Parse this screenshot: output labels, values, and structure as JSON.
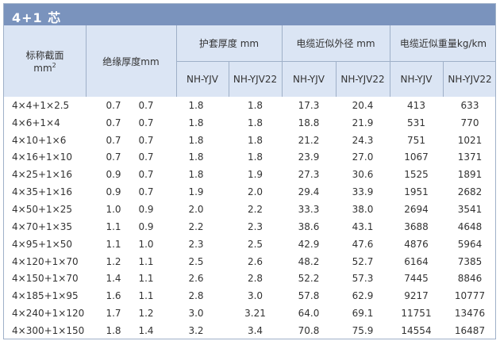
{
  "title": "4+1 芯",
  "header": {
    "col1": "标称截面",
    "col1_unit": "mm",
    "col1_unit_sup": "2",
    "col2": "绝缘厚度mm",
    "group1": "护套厚度 mm",
    "group2": "电缆近似外径 mm",
    "group3": "电缆近似重量kg/km",
    "sub": [
      "NH-YJV",
      "NH-YJV22",
      "NH-YJV",
      "NH-YJV22",
      "NH-YJV",
      "NH-YJV22"
    ]
  },
  "rows": [
    {
      "size": "4×4+1×2.5",
      "ins1": "0.7",
      "ins2": "0.7",
      "s1": "1.8",
      "s2": "1.8",
      "d1": "17.3",
      "d2": "20.4",
      "w1": "413",
      "w2": "633"
    },
    {
      "size": "4×6+1×4",
      "ins1": "0.7",
      "ins2": "0.7",
      "s1": "1.8",
      "s2": "1.8",
      "d1": "18.8",
      "d2": "21.9",
      "w1": "531",
      "w2": "770"
    },
    {
      "size": "4×10+1×6",
      "ins1": "0.7",
      "ins2": "0.7",
      "s1": "1.8",
      "s2": "1.8",
      "d1": "21.2",
      "d2": "24.3",
      "w1": "751",
      "w2": "1021"
    },
    {
      "size": "4×16+1×10",
      "ins1": "0.7",
      "ins2": "0.7",
      "s1": "1.8",
      "s2": "1.8",
      "d1": "23.9",
      "d2": "27.0",
      "w1": "1067",
      "w2": "1371"
    },
    {
      "size": "4×25+1×16",
      "ins1": "0.9",
      "ins2": "0.7",
      "s1": "1.8",
      "s2": "1.9",
      "d1": "27.3",
      "d2": "30.6",
      "w1": "1525",
      "w2": "1891"
    },
    {
      "size": "4×35+1×16",
      "ins1": "0.9",
      "ins2": "0.7",
      "s1": "1.9",
      "s2": "2.0",
      "d1": "29.4",
      "d2": "33.9",
      "w1": "1951",
      "w2": "2682"
    },
    {
      "size": "4×50+1×25",
      "ins1": "1.0",
      "ins2": "0.9",
      "s1": "2.0",
      "s2": "2.2",
      "d1": "33.3",
      "d2": "38.0",
      "w1": "2694",
      "w2": "3541"
    },
    {
      "size": "4×70+1×35",
      "ins1": "1.1",
      "ins2": "0.9",
      "s1": "2.2",
      "s2": "2.3",
      "d1": "38.6",
      "d2": "43.1",
      "w1": "3688",
      "w2": "4648"
    },
    {
      "size": "4×95+1×50",
      "ins1": "1.1",
      "ins2": "1.0",
      "s1": "2.3",
      "s2": "2.5",
      "d1": "42.9",
      "d2": "47.6",
      "w1": "4876",
      "w2": "5964"
    },
    {
      "size": "4×120+1×70",
      "ins1": "1.2",
      "ins2": "1.1",
      "s1": "2.5",
      "s2": "2.6",
      "d1": "48.2",
      "d2": "52.7",
      "w1": "6164",
      "w2": "7385"
    },
    {
      "size": "4×150+1×70",
      "ins1": "1.4",
      "ins2": "1.1",
      "s1": "2.6",
      "s2": "2.8",
      "d1": "52.2",
      "d2": "57.3",
      "w1": "7445",
      "w2": "8846"
    },
    {
      "size": "4×185+1×95",
      "ins1": "1.6",
      "ins2": "1.1",
      "s1": "2.8",
      "s2": "3.0",
      "d1": "57.8",
      "d2": "62.9",
      "w1": "9217",
      "w2": "10777"
    },
    {
      "size": "4×240+1×120",
      "ins1": "1.7",
      "ins2": "1.2",
      "s1": "3.0",
      "s2": "3.21",
      "d1": "64.0",
      "d2": "69.1",
      "w1": "11751",
      "w2": "13476"
    },
    {
      "size": "4×300+1×150",
      "ins1": "1.8",
      "ins2": "1.4",
      "s1": "3.2",
      "s2": "3.4",
      "d1": "70.8",
      "d2": "75.9",
      "w1": "14554",
      "w2": "16487"
    }
  ]
}
